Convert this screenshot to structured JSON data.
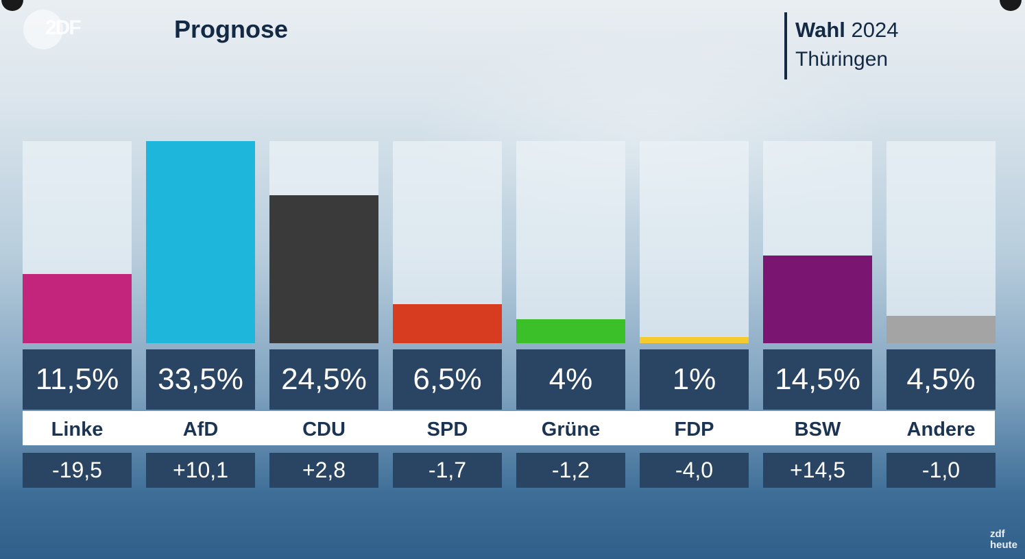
{
  "header": {
    "logo_text": "2DF",
    "title": "Prognose",
    "election_label_bold": "Wahl",
    "election_year": "2024",
    "region": "Thüringen"
  },
  "footer": {
    "brand_line1": "zdf",
    "brand_line2": "heute"
  },
  "colors": {
    "Linke": "#c3247c",
    "AfD": "#1eb7db",
    "CDU": "#3a3a3a",
    "SPD": "#d73b20",
    "Grüne": "#3cc02a",
    "FDP": "#f5cb2e",
    "BSW": "#7a1571",
    "Andere": "#a4a4a4"
  },
  "chart_data": {
    "type": "bar",
    "title": "Prognose",
    "subtitle": "Wahl 2024 Thüringen",
    "categories": [
      "Linke",
      "AfD",
      "CDU",
      "SPD",
      "Grüne",
      "FDP",
      "BSW",
      "Andere"
    ],
    "values": [
      11.5,
      33.5,
      24.5,
      6.5,
      4,
      1,
      14.5,
      4.5
    ],
    "value_labels": [
      "11,5%",
      "33,5%",
      "24,5%",
      "6,5%",
      "4%",
      "1%",
      "14,5%",
      "4,5%"
    ],
    "change_values": [
      -19.5,
      10.1,
      2.8,
      -1.7,
      -1.2,
      -4.0,
      14.5,
      -1.0
    ],
    "change_labels": [
      "-19,5",
      "+10,1",
      "+2,8",
      "-1,7",
      "-1,2",
      "-4,0",
      "+14,5",
      "-1,0"
    ],
    "ylim": [
      0,
      33.5
    ],
    "xlabel": "",
    "ylabel": ""
  }
}
